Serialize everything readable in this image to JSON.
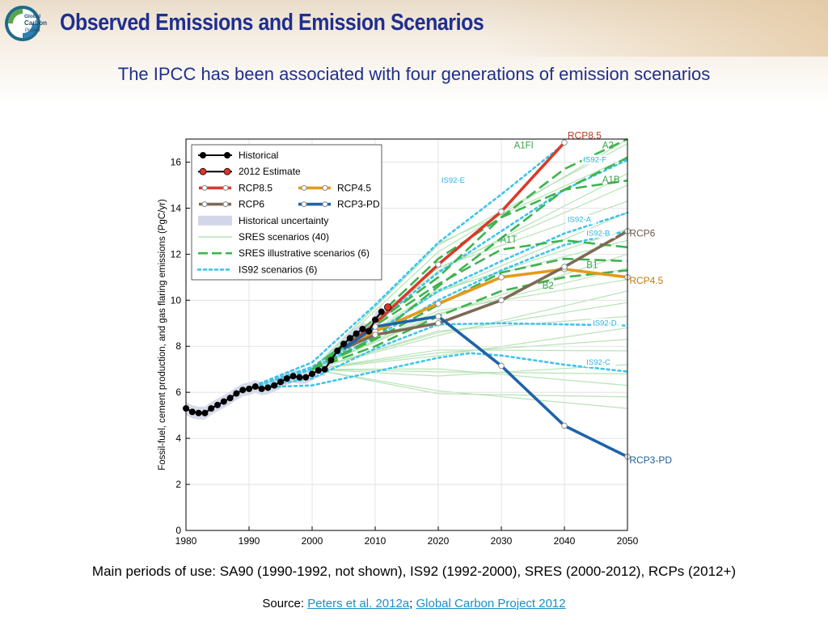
{
  "logo": {
    "text": [
      "Global",
      "Carbon",
      "Project"
    ],
    "icon": "globe-logo"
  },
  "header": {
    "title": "Observed Emissions and Emission Scenarios",
    "subtitle": "The IPCC has been associated with four generations of emission scenarios"
  },
  "footer": {
    "periods": "Main periods of use: SA90 (1990-1992, not shown), IS92 (1992-2000), SRES (2000-2012), RCPs (2012+)",
    "source_prefix": "Source: ",
    "link1": "Peters et al. 2012a",
    "separator": "; ",
    "link2": "Global Carbon Project 2012"
  },
  "chart_data": {
    "type": "line",
    "ylabel": "Fossil-fuel, cement production, and gas flaring emissions (PgC/yr)",
    "xlabel": "",
    "xlim": [
      1980,
      2050
    ],
    "ylim": [
      0,
      17
    ],
    "xticks": [
      1980,
      1990,
      2000,
      2010,
      2020,
      2030,
      2040,
      2050
    ],
    "yticks": [
      0,
      2,
      4,
      6,
      8,
      10,
      12,
      14,
      16
    ],
    "legend_position": "top-left",
    "legend": [
      "Historical",
      "2012 Estimate",
      "RCP8.5",
      "RCP4.5",
      "RCP6",
      "RCP3-PD",
      "Historical uncertainty",
      "SRES scenarios (40)",
      "SRES illustrative scenarios (6)",
      "IS92 scenarios (6)"
    ],
    "colors": {
      "historical": "#000000",
      "estimate": "#e0312a",
      "rcp85": "#d93a2b",
      "rcp45": "#e39a1c",
      "rcp6": "#7d6a55",
      "rcp3pd": "#1f63a8",
      "uncertainty": "#d3d6e8",
      "sres": "#b7e3b7",
      "sres_illustrative": "#3fb34f",
      "is92": "#3fc4ec"
    },
    "historical": {
      "x": [
        1980,
        1981,
        1982,
        1983,
        1984,
        1985,
        1986,
        1987,
        1988,
        1989,
        1990,
        1991,
        1992,
        1993,
        1994,
        1995,
        1996,
        1997,
        1998,
        1999,
        2000,
        2001,
        2002,
        2003,
        2004,
        2005,
        2006,
        2007,
        2008,
        2009,
        2010,
        2011
      ],
      "y": [
        5.3,
        5.15,
        5.1,
        5.1,
        5.3,
        5.45,
        5.6,
        5.75,
        5.95,
        6.1,
        6.15,
        6.25,
        6.15,
        6.2,
        6.3,
        6.45,
        6.6,
        6.7,
        6.65,
        6.65,
        6.8,
        6.95,
        7.0,
        7.4,
        7.8,
        8.1,
        8.35,
        8.55,
        8.75,
        8.65,
        9.15,
        9.5
      ]
    },
    "estimate": {
      "x": [
        2012
      ],
      "y": [
        9.7
      ]
    },
    "series": [
      {
        "key": "rcp85",
        "name": "RCP8.5",
        "x": [
          2005,
          2010,
          2020,
          2030,
          2040
        ],
        "y": [
          7.9,
          9.0,
          11.55,
          13.85,
          16.85
        ]
      },
      {
        "key": "rcp45",
        "name": "RCP4.5",
        "x": [
          2005,
          2010,
          2020,
          2030,
          2040,
          2050
        ],
        "y": [
          7.9,
          8.65,
          9.85,
          11.0,
          11.35,
          11.0
        ]
      },
      {
        "key": "rcp6",
        "name": "RCP6",
        "x": [
          2005,
          2010,
          2020,
          2030,
          2040,
          2050
        ],
        "y": [
          7.9,
          8.5,
          9.0,
          10.0,
          11.45,
          13.0
        ]
      },
      {
        "key": "rcp3pd",
        "name": "RCP3-PD",
        "x": [
          2005,
          2010,
          2020,
          2030,
          2040,
          2050
        ],
        "y": [
          7.9,
          8.85,
          9.3,
          7.15,
          4.55,
          3.2
        ]
      }
    ],
    "sres_illustrative": [
      {
        "name": "A1FI",
        "x": [
          2000,
          2010,
          2020,
          2030,
          2040,
          2050
        ],
        "y": [
          7.0,
          9.0,
          11.0,
          13.6,
          15.7,
          17.0
        ]
      },
      {
        "name": "A2",
        "x": [
          2000,
          2010,
          2020,
          2030,
          2040,
          2050
        ],
        "y": [
          7.0,
          8.4,
          10.6,
          12.7,
          14.8,
          16.2
        ]
      },
      {
        "name": "A1B",
        "x": [
          2000,
          2010,
          2020,
          2030,
          2040,
          2050
        ],
        "y": [
          7.0,
          9.2,
          11.8,
          13.6,
          14.8,
          15.2
        ]
      },
      {
        "name": "A1T",
        "x": [
          2000,
          2010,
          2020,
          2030,
          2040,
          2050
        ],
        "y": [
          7.0,
          8.9,
          10.7,
          12.2,
          12.6,
          12.3
        ]
      },
      {
        "name": "B1",
        "x": [
          2000,
          2010,
          2020,
          2030,
          2040,
          2050
        ],
        "y": [
          7.0,
          8.3,
          9.8,
          11.2,
          11.8,
          11.7
        ]
      },
      {
        "name": "B2",
        "x": [
          2000,
          2010,
          2020,
          2030,
          2040,
          2050
        ],
        "y": [
          7.0,
          8.0,
          9.3,
          10.4,
          11.0,
          11.3
        ]
      }
    ],
    "is92": [
      {
        "name": "IS92-E",
        "x": [
          1990,
          2000,
          2010,
          2020,
          2030,
          2040
        ],
        "y": [
          6.2,
          7.3,
          9.8,
          12.5,
          14.6,
          16.8
        ]
      },
      {
        "name": "IS92-F",
        "x": [
          1990,
          2000,
          2010,
          2020,
          2030,
          2040,
          2050
        ],
        "y": [
          6.2,
          7.1,
          9.0,
          11.2,
          13.0,
          14.8,
          16.1
        ]
      },
      {
        "name": "IS92-A",
        "x": [
          1990,
          2000,
          2010,
          2020,
          2030,
          2040,
          2050
        ],
        "y": [
          6.2,
          7.0,
          8.6,
          10.4,
          11.7,
          12.9,
          13.8
        ]
      },
      {
        "name": "IS92-B",
        "x": [
          1990,
          2000,
          2010,
          2020,
          2030,
          2040,
          2050
        ],
        "y": [
          6.2,
          7.0,
          8.4,
          10.0,
          11.3,
          12.4,
          13.0
        ]
      },
      {
        "name": "IS92-D",
        "x": [
          1990,
          2000,
          2010,
          2020,
          2030,
          2040,
          2050
        ],
        "y": [
          6.2,
          6.6,
          7.9,
          8.95,
          9.0,
          8.95,
          8.9
        ]
      },
      {
        "name": "IS92-C",
        "x": [
          1990,
          2000,
          2010,
          2020,
          2025,
          2030,
          2040,
          2050
        ],
        "y": [
          6.2,
          6.3,
          6.9,
          7.5,
          7.7,
          7.6,
          7.2,
          6.9
        ]
      }
    ]
  }
}
